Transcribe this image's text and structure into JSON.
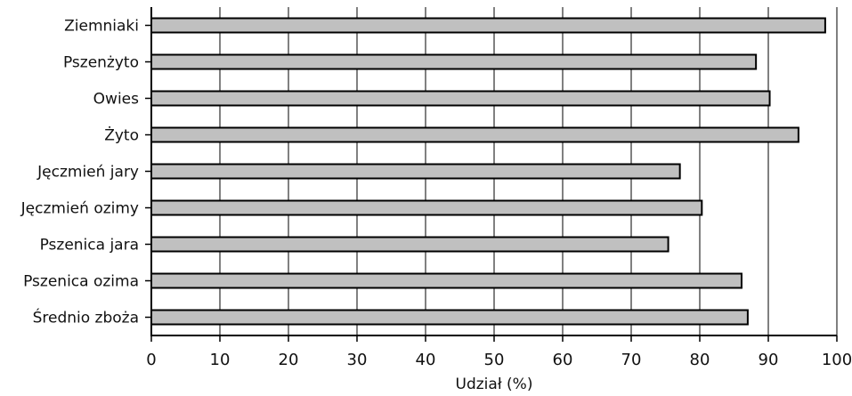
{
  "chart_data": {
    "type": "bar",
    "orientation": "horizontal",
    "title": "",
    "xlabel": "Udział (%)",
    "ylabel": "",
    "categories": [
      "Ziemniaki",
      "Pszenżyto",
      "Owies",
      "Żyto",
      "Jęczmień jary",
      "Jęczmień ozimy",
      "Pszenica jara",
      "Pszenica ozima",
      "Średnio zboża"
    ],
    "values": [
      98.3,
      88.2,
      90.2,
      94.4,
      77.1,
      80.3,
      75.4,
      86.1,
      87.0
    ],
    "xlim": [
      0,
      100
    ],
    "xticks": [
      0,
      10,
      20,
      30,
      40,
      50,
      60,
      70,
      80,
      90,
      100
    ],
    "grid": "vertical",
    "legend": "none",
    "colors": {
      "bar_fill": "#c0c0c0",
      "bar_stroke": "#000000",
      "grid": "#000000"
    }
  }
}
